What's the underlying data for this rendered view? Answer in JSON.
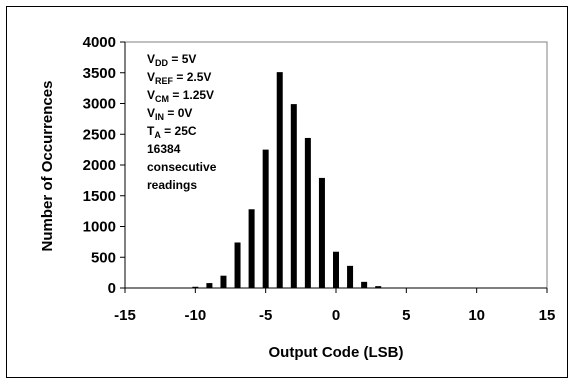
{
  "chart_data": {
    "type": "bar",
    "xlabel": "Output Code (LSB)",
    "ylabel": "Number of Occurrences",
    "xlim": [
      -15,
      15
    ],
    "ylim": [
      0,
      4000
    ],
    "xticks": [
      "-15",
      "-10",
      "-5",
      "0",
      "5",
      "10",
      "15"
    ],
    "yticks": [
      "0",
      "500",
      "1000",
      "1500",
      "2000",
      "2500",
      "3000",
      "3500",
      "4000"
    ],
    "grid": false,
    "legend": "none",
    "bar_color": "#000000",
    "x": [
      -10,
      -9,
      -8,
      -7,
      -6,
      -5,
      -4,
      -3,
      -2,
      -1,
      0,
      1,
      2,
      3
    ],
    "values": [
      20,
      80,
      200,
      740,
      1280,
      2250,
      3510,
      2990,
      2440,
      1790,
      590,
      360,
      100,
      30
    ],
    "annotations": [
      {
        "main": "V",
        "sub": "DD",
        "rest": " = 5V"
      },
      {
        "main": "V",
        "sub": "REF",
        "rest": " = 2.5V"
      },
      {
        "main": "V",
        "sub": "CM",
        "rest": " = 1.25V"
      },
      {
        "main": "V",
        "sub": "IN",
        "rest": " = 0V"
      },
      {
        "main": "T",
        "sub": "A",
        "rest": " = 25C"
      },
      {
        "main": "16384",
        "sub": "",
        "rest": ""
      },
      {
        "main": "consecutive",
        "sub": "",
        "rest": ""
      },
      {
        "main": "readings",
        "sub": "",
        "rest": ""
      }
    ]
  }
}
